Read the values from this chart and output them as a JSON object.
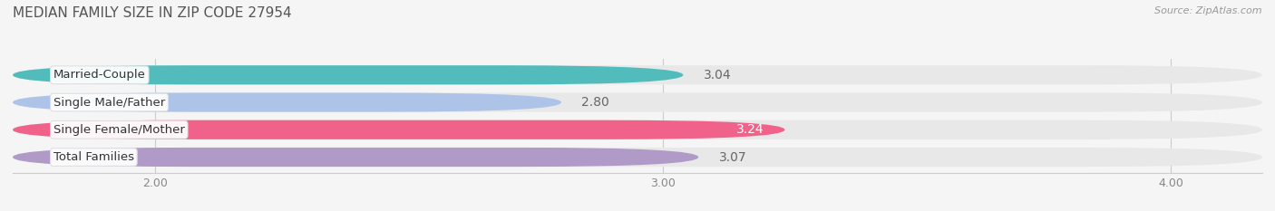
{
  "title": "MEDIAN FAMILY SIZE IN ZIP CODE 27954",
  "source": "Source: ZipAtlas.com",
  "categories": [
    "Married-Couple",
    "Single Male/Father",
    "Single Female/Mother",
    "Total Families"
  ],
  "values": [
    3.04,
    2.8,
    3.24,
    3.07
  ],
  "bar_colors": [
    "#52bcbc",
    "#adc4e8",
    "#f0628a",
    "#b09ac8"
  ],
  "track_color": "#e8e8e8",
  "xlim_left": 1.72,
  "xlim_right": 4.18,
  "xmin": 1.72,
  "xmax": 4.18,
  "xticks": [
    2.0,
    3.0,
    4.0
  ],
  "xtick_labels": [
    "2.00",
    "3.00",
    "4.00"
  ],
  "value_fontsize": 10,
  "label_fontsize": 9.5,
  "title_fontsize": 11,
  "bar_height": 0.7,
  "bar_gap": 1.0,
  "background_color": "#f5f5f5",
  "value_inside_color": "white",
  "value_outside_color": "#666666",
  "inside_label_idx": 2
}
